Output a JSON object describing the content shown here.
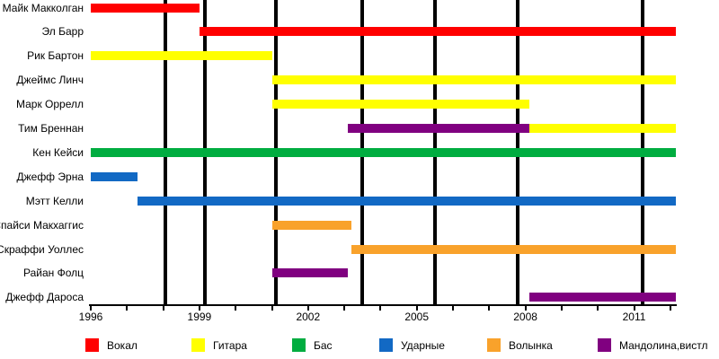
{
  "chart_data": {
    "type": "timeline",
    "title": "",
    "x_axis": {
      "min": 1996,
      "max": 2012.15,
      "tick_start": 1996,
      "tick_end": 2012,
      "tick_interval": 1,
      "label_years": [
        1996,
        1999,
        2002,
        2005,
        2008,
        2011
      ],
      "tick_labels": [
        "1996",
        "1999",
        "2002",
        "2005",
        "2008",
        "2011"
      ]
    },
    "gridline_years": [
      1998.06,
      1999.15,
      2001.12,
      2003.49,
      2005.51,
      2007.79,
      2011.24
    ],
    "palette": {
      "red": "#ff0000",
      "yellow": "#ffff00",
      "green": "#00ad40",
      "blue": "#1269c4",
      "orange": "#f9a22b",
      "purple": "#800080"
    },
    "legend": [
      {
        "label": "Вокал",
        "color": "red"
      },
      {
        "label": "Гитара",
        "color": "yellow"
      },
      {
        "label": "Бас",
        "color": "green"
      },
      {
        "label": "Ударные",
        "color": "blue"
      },
      {
        "label": "Волынка",
        "color": "orange"
      },
      {
        "label": "Мандолина,вистл",
        "color": "purple"
      }
    ],
    "members": [
      {
        "name": "Майк Макколган",
        "segments": [
          {
            "color": "red",
            "start": 1996.0,
            "end": 1999.0
          }
        ]
      },
      {
        "name": "Эл Барр",
        "segments": [
          {
            "color": "red",
            "start": 1999.0,
            "end": 2012.15
          }
        ]
      },
      {
        "name": "Рик Бартон",
        "segments": [
          {
            "color": "yellow",
            "start": 1996.0,
            "end": 2001.0
          }
        ]
      },
      {
        "name": "Джеймс Линч",
        "segments": [
          {
            "color": "yellow",
            "start": 2001.0,
            "end": 2012.15
          }
        ]
      },
      {
        "name": "Марк Оррелл",
        "segments": [
          {
            "color": "yellow",
            "start": 2001.0,
            "end": 2008.1
          }
        ]
      },
      {
        "name": "Тим Бреннан",
        "segments": [
          {
            "color": "purple",
            "start": 2003.1,
            "end": 2008.1
          },
          {
            "color": "yellow",
            "start": 2008.1,
            "end": 2012.15
          }
        ]
      },
      {
        "name": "Кен Кейси",
        "segments": [
          {
            "color": "green",
            "start": 1996.0,
            "end": 2012.15
          }
        ]
      },
      {
        "name": "Джефф Эрна",
        "segments": [
          {
            "color": "blue",
            "start": 1996.0,
            "end": 1997.3
          }
        ]
      },
      {
        "name": "Мэтт Келли",
        "segments": [
          {
            "color": "blue",
            "start": 1997.3,
            "end": 2012.15
          }
        ]
      },
      {
        "name": "Спайси Макхаггис",
        "segments": [
          {
            "color": "orange",
            "start": 2001.0,
            "end": 2003.2
          }
        ]
      },
      {
        "name": "Скраффи Уоллес",
        "segments": [
          {
            "color": "orange",
            "start": 2003.2,
            "end": 2012.15
          }
        ]
      },
      {
        "name": "Райан Фолц",
        "segments": [
          {
            "color": "purple",
            "start": 2001.0,
            "end": 2003.1
          }
        ]
      },
      {
        "name": "Джефф Дароса",
        "segments": [
          {
            "color": "purple",
            "start": 2008.1,
            "end": 2012.15
          }
        ]
      }
    ]
  }
}
